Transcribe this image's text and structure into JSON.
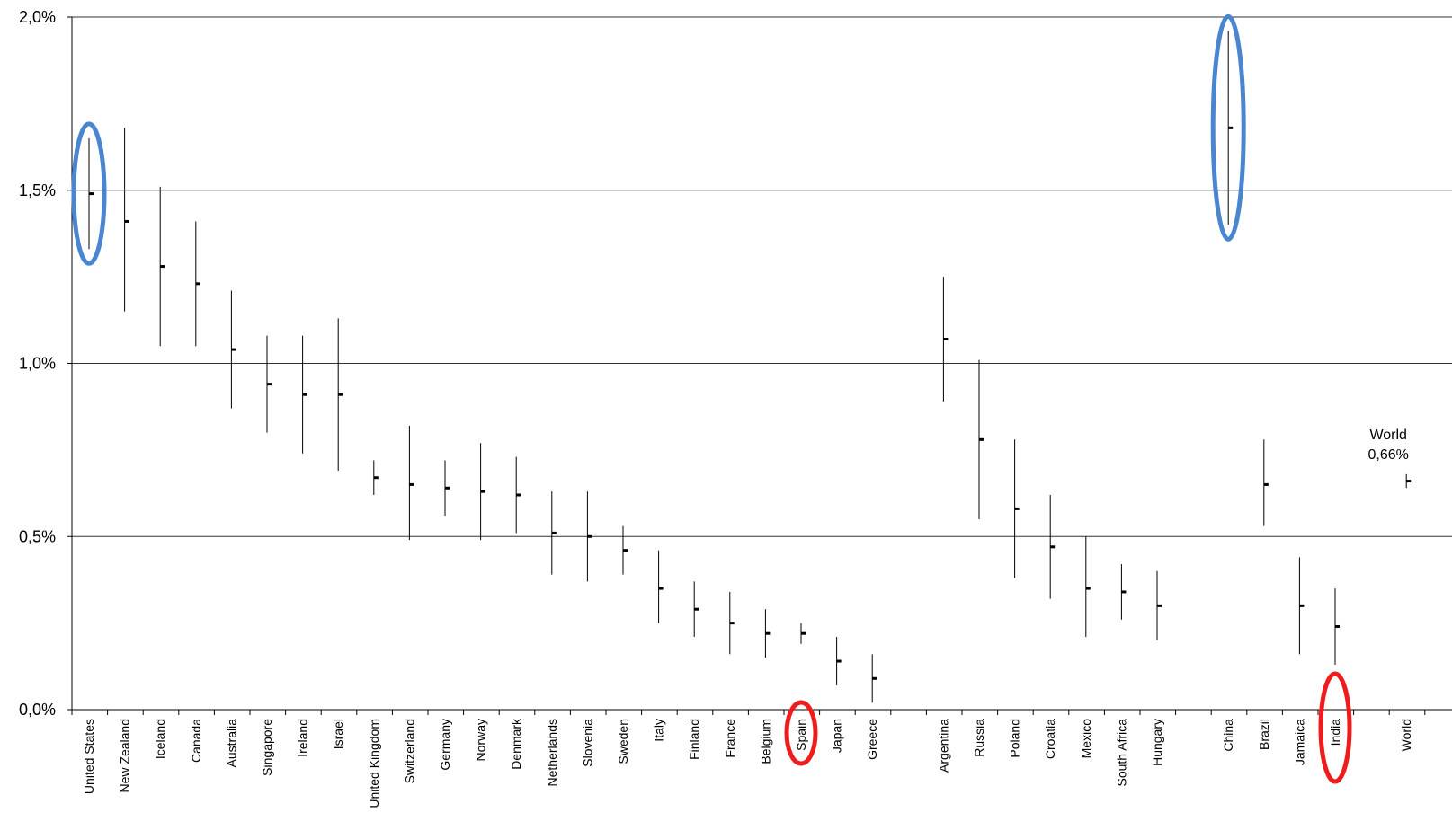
{
  "chart_data": {
    "type": "error_bar",
    "title": "",
    "xlabel": "",
    "ylabel": "",
    "ylim": [
      0,
      2.0
    ],
    "yticks": [
      "0,0%",
      "0,5%",
      "1,0%",
      "1,5%",
      "2,0%"
    ],
    "ytick_values": [
      0,
      0.5,
      1.0,
      1.5,
      2.0
    ],
    "grid": true,
    "groups": [
      [
        "United States",
        "New Zealand",
        "Iceland",
        "Canada",
        "Australia",
        "Singapore",
        "Ireland",
        "Israel",
        "United Kingdom",
        "Switzerland",
        "Germany",
        "Norway",
        "Denmark",
        "Netherlands",
        "Slovenia",
        "Sweden",
        "Italy",
        "Finland",
        "France",
        "Belgium",
        "Spain",
        "Japan",
        "Greece"
      ],
      [
        "Argentina",
        "Russia",
        "Poland",
        "Croatia",
        "Mexico",
        "South Africa",
        "Hungary"
      ],
      [
        "China",
        "Brazil",
        "Jamaica",
        "India"
      ],
      [
        "World"
      ]
    ],
    "categories": [
      "United States",
      "New Zealand",
      "Iceland",
      "Canada",
      "Australia",
      "Singapore",
      "Ireland",
      "Israel",
      "United Kingdom",
      "Switzerland",
      "Germany",
      "Norway",
      "Denmark",
      "Netherlands",
      "Slovenia",
      "Sweden",
      "Italy",
      "Finland",
      "France",
      "Belgium",
      "Spain",
      "Japan",
      "Greece",
      "Argentina",
      "Russia",
      "Poland",
      "Croatia",
      "Mexico",
      "South Africa",
      "Hungary",
      "China",
      "Brazil",
      "Jamaica",
      "India",
      "World"
    ],
    "values": [
      1.49,
      1.41,
      1.28,
      1.23,
      1.04,
      0.94,
      0.91,
      0.91,
      0.67,
      0.65,
      0.64,
      0.63,
      0.62,
      0.51,
      0.5,
      0.46,
      0.35,
      0.29,
      0.25,
      0.22,
      0.22,
      0.14,
      0.09,
      1.07,
      0.78,
      0.58,
      0.47,
      0.35,
      0.34,
      0.3,
      1.68,
      0.65,
      0.3,
      0.24,
      0.66
    ],
    "lower": [
      1.33,
      1.15,
      1.05,
      1.05,
      0.87,
      0.8,
      0.74,
      0.69,
      0.62,
      0.49,
      0.56,
      0.49,
      0.51,
      0.39,
      0.37,
      0.39,
      0.25,
      0.21,
      0.16,
      0.15,
      0.19,
      0.07,
      0.02,
      0.89,
      0.55,
      0.38,
      0.32,
      0.21,
      0.26,
      0.2,
      1.4,
      0.53,
      0.16,
      0.13,
      0.64
    ],
    "upper": [
      1.65,
      1.68,
      1.51,
      1.41,
      1.21,
      1.08,
      1.08,
      1.13,
      0.72,
      0.82,
      0.72,
      0.77,
      0.73,
      0.63,
      0.63,
      0.53,
      0.46,
      0.37,
      0.34,
      0.29,
      0.25,
      0.21,
      0.16,
      1.25,
      1.01,
      0.78,
      0.62,
      0.5,
      0.42,
      0.4,
      1.96,
      0.78,
      0.44,
      0.35,
      0.68
    ],
    "annotations": [
      {
        "label": "World",
        "value_label": "0,66%",
        "target": "World"
      }
    ],
    "highlights": [
      {
        "target": "United States",
        "color": "#4a86d0",
        "shape": "ellipse",
        "region": "bar"
      },
      {
        "target": "China",
        "color": "#4a86d0",
        "shape": "ellipse",
        "region": "bar"
      },
      {
        "target": "Spain",
        "color": "#ee1c1c",
        "shape": "ellipse",
        "region": "label"
      },
      {
        "target": "India",
        "color": "#ee1c1c",
        "shape": "ellipse",
        "region": "label"
      }
    ],
    "colors": {
      "grid": "#333333",
      "bar": "#000000",
      "highlight_blue": "#4a86d0",
      "highlight_red": "#ee1c1c"
    }
  }
}
